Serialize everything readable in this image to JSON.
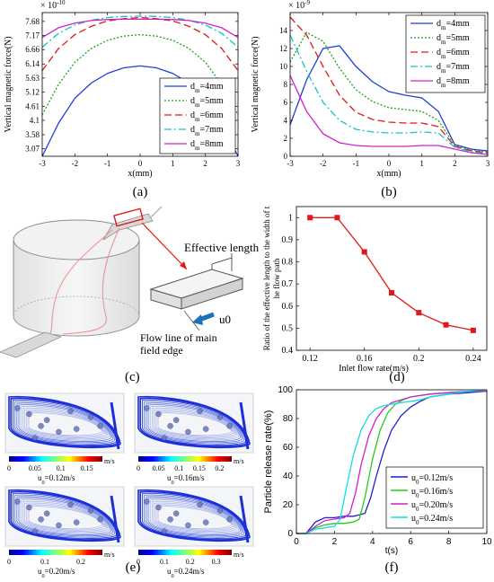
{
  "panel_labels": {
    "a": "(a)",
    "b": "(b)",
    "c": "(c)",
    "d": "(d)",
    "e": "(e)",
    "f": "(f)"
  },
  "legend_d": [
    "dm=4mm",
    "dm=5mm",
    "dm=6mm",
    "dm=7mm",
    "dm=8mm"
  ],
  "colors": {
    "d4": "#1f3fd6",
    "d5": "#1aa31a",
    "d6": "#e01818",
    "d7": "#10c4c4",
    "d8": "#d020d0",
    "red_marker": "#e01818",
    "arrow": "#1f6fbf"
  },
  "panel_c": {
    "effective_length": "Effective length",
    "flow_line": "Flow line of main field edge",
    "flow_line_1": "Flow line of main",
    "flow_line_2": "field edge",
    "velocity": "u0"
  },
  "panel_e": {
    "captions": [
      "u0=0.12m/s",
      "u0=0.16m/s",
      "u0=0.20m/s",
      "u0=0.24m/s"
    ],
    "unit": "m/s",
    "ticks": [
      [
        "0",
        "0.05",
        "0.1",
        "0.15"
      ],
      [
        "0",
        "0.05",
        "0.1",
        "0.15",
        "0.2"
      ],
      [
        "0",
        "0.1",
        "0.2"
      ],
      [
        "0",
        "0.1",
        "0.2",
        "0.3"
      ]
    ]
  },
  "chart_data": [
    {
      "id": "a",
      "type": "line",
      "xlabel": "x(mm)",
      "ylabel": "Vertical magnetic force(N)",
      "exponent": "× 10^-10",
      "xlim": [
        -3,
        3
      ],
      "ylim": [
        2.8,
        8.0
      ],
      "xticks": [
        "-3",
        "-2",
        "-1",
        "0",
        "1",
        "2",
        "3"
      ],
      "yticks": [
        "3.07",
        "3.58",
        "4.1",
        "4.61",
        "5.12",
        "5.63",
        "6.14",
        "6.66",
        "7.17",
        "7.68"
      ],
      "legend_position": "bottom-right",
      "x": [
        -3,
        -2.5,
        -2,
        -1.5,
        -1,
        -0.5,
        0,
        0.5,
        1,
        1.5,
        2,
        2.5,
        3
      ],
      "series": [
        {
          "name": "dm=4mm",
          "values": [
            2.8,
            4.0,
            4.9,
            5.45,
            5.8,
            6.0,
            6.07,
            6.0,
            5.8,
            5.45,
            4.9,
            4.0,
            2.8
          ]
        },
        {
          "name": "dm=5mm",
          "values": [
            4.3,
            5.4,
            6.2,
            6.7,
            7.0,
            7.15,
            7.2,
            7.15,
            7.0,
            6.7,
            6.2,
            5.4,
            4.3
          ]
        },
        {
          "name": "dm=6mm",
          "values": [
            5.9,
            6.7,
            7.2,
            7.5,
            7.7,
            7.78,
            7.82,
            7.78,
            7.7,
            7.5,
            7.2,
            6.7,
            5.9
          ]
        },
        {
          "name": "dm=7mm",
          "values": [
            6.75,
            7.25,
            7.55,
            7.72,
            7.82,
            7.86,
            7.87,
            7.86,
            7.82,
            7.72,
            7.55,
            7.25,
            6.75
          ]
        },
        {
          "name": "dm=8mm",
          "values": [
            7.1,
            7.45,
            7.62,
            7.71,
            7.75,
            7.76,
            7.76,
            7.76,
            7.75,
            7.71,
            7.62,
            7.45,
            7.1
          ]
        }
      ]
    },
    {
      "id": "b",
      "type": "line",
      "xlabel": "x(mm)",
      "ylabel": "Vertical magnetic force(N)",
      "exponent": "× 10^-9",
      "xlim": [
        -3,
        3
      ],
      "ylim": [
        0,
        16
      ],
      "xticks": [
        "-3",
        "-2",
        "-1",
        "0",
        "1",
        "2",
        "3"
      ],
      "yticks": [
        "0",
        "2",
        "4",
        "6",
        "8",
        "10",
        "12",
        "14"
      ],
      "legend_position": "top-right",
      "x": [
        -3,
        -2.5,
        -2,
        -1.5,
        -1,
        -0.5,
        0,
        0.5,
        1,
        1.5,
        2,
        2.5,
        3
      ],
      "series": [
        {
          "name": "dm=4mm",
          "values": [
            3.5,
            8.5,
            12.0,
            12.3,
            10.0,
            8.3,
            7.2,
            6.8,
            6.5,
            5.0,
            1.3,
            0.8,
            0.6
          ]
        },
        {
          "name": "dm=5mm",
          "values": [
            10.5,
            13.8,
            12.8,
            9.8,
            7.4,
            6.1,
            5.4,
            5.2,
            5.0,
            4.0,
            1.2,
            0.7,
            0.5
          ]
        },
        {
          "name": "dm=6mm",
          "values": [
            15.5,
            13.5,
            10.0,
            6.8,
            4.9,
            4.1,
            3.8,
            3.7,
            3.7,
            3.3,
            1.1,
            0.6,
            0.4
          ]
        },
        {
          "name": "dm=7mm",
          "values": [
            13.5,
            9.5,
            6.0,
            4.0,
            3.0,
            2.7,
            2.6,
            2.6,
            2.7,
            2.6,
            1.0,
            0.5,
            0.3
          ]
        },
        {
          "name": "dm=8mm",
          "values": [
            9.0,
            5.0,
            2.5,
            1.5,
            1.2,
            1.1,
            1.1,
            1.1,
            1.2,
            1.2,
            0.8,
            0.4,
            0.2
          ]
        }
      ]
    },
    {
      "id": "d",
      "type": "line",
      "xlabel": "Inlet flow rate(m/s)",
      "ylabel": "Ratio of the effective length to the width of the flow path",
      "ylabel_1": "Ratio of the effective length to the width of t",
      "ylabel_2": "he flow path",
      "xlim": [
        0.11,
        0.25
      ],
      "ylim": [
        0.4,
        1.05
      ],
      "xticks": [
        "0.12",
        "0.16",
        "0.2",
        "0.24"
      ],
      "yticks": [
        "0.4",
        "0.5",
        "0.6",
        "0.7",
        "0.8",
        "0.9",
        "1"
      ],
      "x": [
        0.12,
        0.14,
        0.16,
        0.18,
        0.2,
        0.22,
        0.24
      ],
      "series": [
        {
          "values": [
            1.0,
            1.0,
            0.845,
            0.66,
            0.57,
            0.515,
            0.49
          ]
        }
      ]
    },
    {
      "id": "f",
      "type": "line",
      "xlabel": "t(s)",
      "ylabel": "Particle release rate(%)",
      "xlim": [
        0,
        10
      ],
      "ylim": [
        0,
        100
      ],
      "xticks": [
        "0",
        "2",
        "4",
        "6",
        "8",
        "10"
      ],
      "yticks": [
        "0",
        "20",
        "40",
        "60",
        "80",
        "100"
      ],
      "legend_position": "bottom-right",
      "series": [
        {
          "name": "u0=0.12m/s",
          "x": [
            0,
            0.5,
            1,
            1.5,
            2,
            2.5,
            3,
            3.3,
            3.6,
            3.9,
            4.2,
            4.6,
            5,
            5.5,
            6,
            6.5,
            7,
            8,
            9,
            10
          ],
          "values": [
            0,
            0,
            8,
            11,
            11,
            12,
            12,
            13,
            14,
            25,
            40,
            58,
            72,
            82,
            88,
            92,
            95,
            97,
            98,
            99
          ]
        },
        {
          "name": "u0=0.16m/s",
          "x": [
            0,
            0.5,
            1,
            1.5,
            2,
            2.5,
            3,
            3.3,
            3.6,
            4,
            4.4,
            4.8,
            5.2,
            5.6,
            6,
            6.5,
            7,
            8,
            9,
            10
          ],
          "values": [
            0,
            0,
            4,
            6,
            7,
            7,
            8,
            10,
            25,
            52,
            72,
            84,
            90,
            93,
            95,
            96,
            97,
            98,
            99,
            99
          ]
        },
        {
          "name": "u0=0.20m/s",
          "x": [
            0,
            0.5,
            1,
            1.5,
            2,
            2.5,
            2.8,
            3.1,
            3.4,
            3.8,
            4.2,
            4.6,
            5,
            5.5,
            6,
            6.5,
            7,
            8,
            9,
            10
          ],
          "values": [
            0,
            0,
            5,
            9,
            10,
            11,
            14,
            28,
            48,
            68,
            80,
            87,
            91,
            93,
            95,
            96,
            97,
            98,
            99,
            99
          ]
        },
        {
          "name": "u0=0.24m/s",
          "x": [
            0,
            0.5,
            1,
            1.5,
            2,
            2.3,
            2.6,
            3,
            3.4,
            3.8,
            4.2,
            4.6,
            5,
            5.5,
            6,
            6.5,
            7,
            8,
            9,
            10
          ],
          "values": [
            0,
            0,
            3,
            4,
            5,
            10,
            30,
            55,
            72,
            82,
            87,
            89,
            90,
            91,
            92,
            93,
            95,
            97,
            99,
            100
          ]
        }
      ]
    }
  ]
}
